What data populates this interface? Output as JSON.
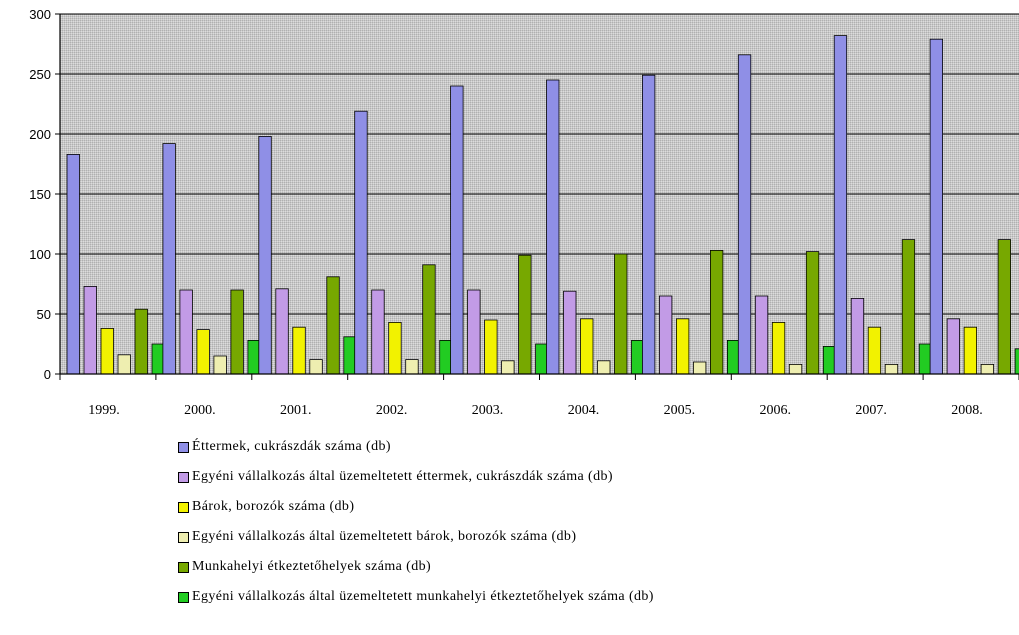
{
  "chart_data": {
    "type": "bar",
    "categories": [
      "1999.",
      "2000.",
      "2001.",
      "2002.",
      "2003.",
      "2004.",
      "2005.",
      "2006.",
      "2007.",
      "2008."
    ],
    "ylim": [
      0,
      300
    ],
    "yticks": [
      0,
      50,
      100,
      150,
      200,
      250,
      300
    ],
    "grid": true,
    "legend_position": "bottom",
    "series": [
      {
        "name": "Éttermek, cukrászdák száma (db)",
        "color": "#8f8fe6",
        "values": [
          183,
          192,
          198,
          219,
          240,
          245,
          249,
          266,
          282,
          279
        ]
      },
      {
        "name": "Egyéni vállalkozás által üzemeltetett éttermek, cukrászdák száma (db)",
        "color": "#c29be6",
        "values": [
          73,
          70,
          71,
          70,
          70,
          69,
          65,
          65,
          63,
          46
        ]
      },
      {
        "name": "Bárok, borozók száma (db)",
        "color": "#f2f200",
        "values": [
          38,
          37,
          39,
          43,
          45,
          46,
          46,
          43,
          39,
          39
        ]
      },
      {
        "name": "Egyéni vállalkozás által üzemeltetett bárok, borozók száma (db)",
        "color": "#eeeeb0",
        "values": [
          16,
          15,
          12,
          12,
          11,
          11,
          10,
          8,
          8,
          8
        ]
      },
      {
        "name": "Munkahelyi étkeztetőhelyek száma (db)",
        "color": "#77a800",
        "values": [
          54,
          70,
          81,
          91,
          99,
          100,
          103,
          102,
          112,
          112
        ]
      },
      {
        "name": "Egyéni vállalkozás által üzemeltetett munkahelyi étkeztetőhelyek száma (db)",
        "color": "#22cc22",
        "values": [
          25,
          28,
          31,
          28,
          25,
          28,
          28,
          23,
          25,
          21
        ]
      }
    ]
  }
}
